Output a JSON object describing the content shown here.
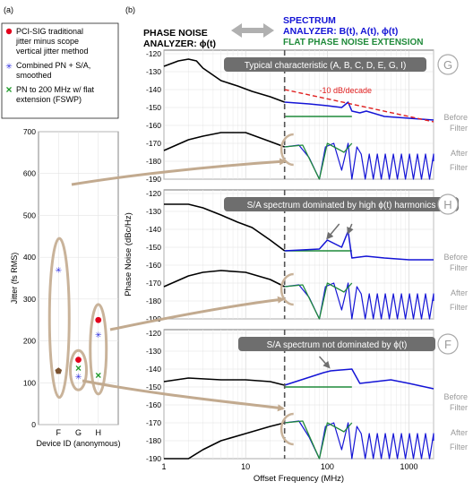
{
  "panel_labels": {
    "a": "(a)",
    "b": "(b)"
  },
  "colors": {
    "red_dot": "#e3001b",
    "blue_star": "#2a2ae0",
    "green_x": "#1f9a2a",
    "brown_pentagon": "#7a5230",
    "spectrum_blue": "#1414d6",
    "pn_black": "#000000",
    "flat_green": "#1f8a3a",
    "annotation_gray": "#6e6e6e",
    "ellipse_tan": "#c9b39a",
    "arrow_tan": "#c2aa8f",
    "decade_red": "#e02020",
    "muted_label": "#9a9a9a"
  },
  "legend_a": [
    {
      "symbol": "dot",
      "text": "PCI-SIG traditional jitter minus scope vertical jitter method"
    },
    {
      "symbol": "star",
      "text": "Combined PN + S/A, smoothed"
    },
    {
      "symbol": "x",
      "text": "PN to 200 MHz w/ flat extension (FSWP)"
    }
  ],
  "chart_a": {
    "type": "scatter",
    "ylabel": "Jitter (fs RMS)",
    "xlabel": "Device ID (anonymous)",
    "categories": [
      "F",
      "G",
      "H"
    ],
    "ylim": [
      0,
      700
    ],
    "yticks": [
      "0",
      "100",
      "200",
      "300",
      "400",
      "500",
      "600",
      "700"
    ]
  },
  "header_b": {
    "left_title_line1": "PHASE NOISE",
    "left_title_line2": "ANALYZER: ϕ(t)",
    "right_title_line1": "SPECTRUM",
    "right_title_line2": "ANALYZER: B(t), A(t), ϕ(t)",
    "right_title_line3": "FLAT PHASE NOISE EXTENSION"
  },
  "chart_b": {
    "ylabel": "Phase Noise (dBc/Hz)",
    "xlabel": "Offset Frequency (MHz)",
    "xticks": [
      "1",
      "10",
      "100",
      "1000"
    ],
    "yticks": [
      "-190",
      "-180",
      "-170",
      "-160",
      "-150",
      "-140",
      "-130",
      "-120"
    ],
    "side_labels": {
      "before": "Before",
      "after": "After",
      "filter": "Filter"
    }
  },
  "panels_b": [
    {
      "letter": "G",
      "note": "Typical characteristic (A, B, C, D, E, G, I)",
      "decade_label": "-10 dB/decade"
    },
    {
      "letter": "H",
      "note": "S/A spectrum dominated by high ϕ(t) harmonics"
    },
    {
      "letter": "F",
      "note": "S/A spectrum not dominated by ϕ(t)"
    }
  ],
  "chart_data": [
    {
      "type": "scatter",
      "xlabel": "Device ID (anonymous)",
      "ylabel": "Jitter (fs RMS)",
      "categories": [
        "F",
        "G",
        "H"
      ],
      "ylim": [
        0,
        700
      ],
      "series": [
        {
          "name": "PCI-SIG traditional jitter minus scope vertical jitter method",
          "marker": "dot",
          "values": [
            null,
            155,
            250
          ]
        },
        {
          "name": "Combined PN + S/A, smoothed",
          "marker": "star",
          "values": [
            370,
            115,
            215
          ]
        },
        {
          "name": "PN to 200 MHz w/ flat extension (FSWP)",
          "marker": "x",
          "values": [
            null,
            135,
            118
          ]
        },
        {
          "marker": "pentagon",
          "values": [
            128,
            null,
            null
          ]
        }
      ]
    },
    {
      "type": "line",
      "xlabel": "Offset Frequency (MHz)",
      "ylabel": "Phase Noise (dBc/Hz)",
      "xscale": "log",
      "xlim": [
        1,
        2000
      ],
      "ylim": [
        -190,
        -118
      ],
      "panels": [
        {
          "letter": "G",
          "before_black": {
            "x": [
              1,
              1.5,
              2,
              2.5,
              3,
              5,
              8,
              12,
              20,
              30
            ],
            "y": [
              -127,
              -124,
              -123,
              -124,
              -128,
              -135,
              -138,
              -141,
              -144,
              -147
            ]
          },
          "before_blue": {
            "x": [
              30,
              60,
              100,
              150,
              180,
              200,
              250,
              300,
              500,
              1000,
              2000
            ],
            "y": [
              -147,
              -148,
              -149,
              -150,
              -147,
              -152,
              -153,
              -152,
              -155,
              -156,
              -157
            ]
          },
          "flat_green": {
            "x": [
              30,
              200
            ],
            "y": [
              -155,
              -155
            ]
          },
          "after_black": {
            "x": [
              1,
              2,
              3,
              5,
              10,
              20,
              30
            ],
            "y": [
              -174,
              -168,
              -166,
              -164,
              -164,
              -169,
              -172
            ]
          },
          "decade_line": {
            "x": [
              30,
              2000
            ],
            "y": [
              -140,
              -158
            ]
          }
        },
        {
          "letter": "H",
          "before_black": {
            "x": [
              1,
              2,
              3,
              5,
              8,
              12,
              20,
              30
            ],
            "y": [
              -126,
              -126,
              -128,
              -132,
              -136,
              -139,
              -146,
              -152
            ]
          },
          "before_blue": {
            "x": [
              30,
              80,
              100,
              150,
              180,
              200,
              300,
              500,
              1000,
              2000
            ],
            "y": [
              -152,
              -151,
              -146,
              -150,
              -141,
              -156,
              -155,
              -156,
              -157,
              -157
            ]
          },
          "flat_green": {
            "x": [
              30,
              200
            ],
            "y": [
              -152,
              -152
            ]
          },
          "after_black": {
            "x": [
              1,
              2,
              3,
              5,
              10,
              20,
              30
            ],
            "y": [
              -172,
              -166,
              -164,
              -163,
              -164,
              -168,
              -172
            ]
          }
        },
        {
          "letter": "F",
          "before_black": {
            "x": [
              1,
              2,
              5,
              10,
              20,
              30
            ],
            "y": [
              -147,
              -145,
              -146,
              -146,
              -147,
              -149
            ]
          },
          "before_blue": {
            "x": [
              30,
              90,
              110,
              200,
              250,
              600,
              1000,
              2000
            ],
            "y": [
              -149,
              -142,
              -141,
              -140,
              -148,
              -146,
              -148,
              -151
            ]
          },
          "flat_green": {
            "x": [
              30,
              200
            ],
            "y": [
              -150,
              -150
            ]
          },
          "after_black": {
            "x": [
              1,
              2,
              3,
              5,
              10,
              20,
              30
            ],
            "y": [
              -198,
              -191,
              -185,
              -180,
              -176,
              -172,
              -170
            ]
          }
        }
      ]
    }
  ]
}
